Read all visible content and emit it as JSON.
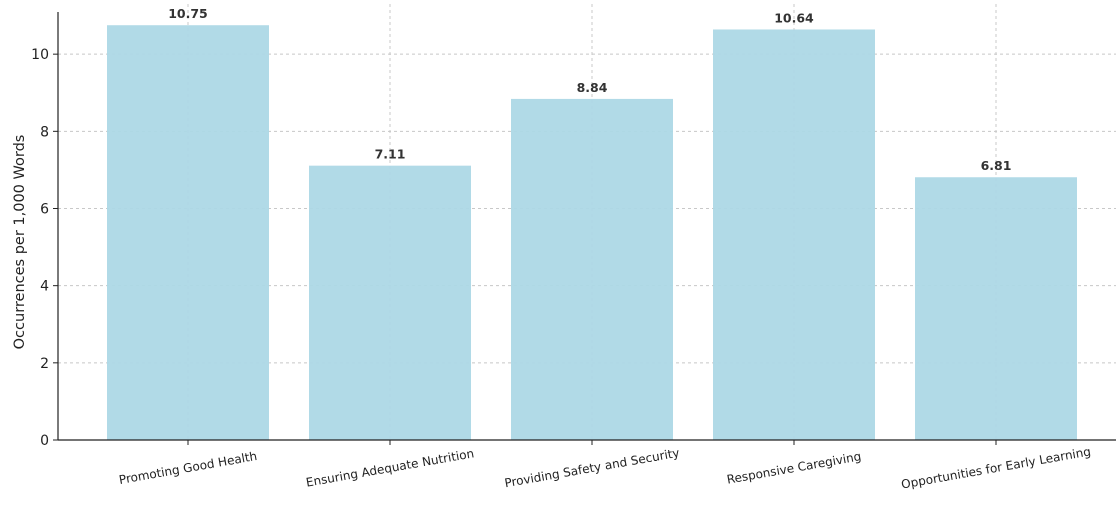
{
  "chart_data": {
    "type": "bar",
    "categories": [
      "Promoting Good Health",
      "Ensuring Adequate Nutrition",
      "Providing Safety and Security",
      "Responsive Caregiving",
      "Opportunities for Early Learning"
    ],
    "values": [
      10.75,
      7.11,
      8.84,
      10.64,
      6.81
    ],
    "value_labels": [
      "10.75",
      "7.11",
      "8.84",
      "10.64",
      "6.81"
    ],
    "xlabel": "",
    "ylabel": "Occurrences per 1,000 Words",
    "ylim": [
      0,
      11.3
    ],
    "yticks": [
      0,
      2,
      4,
      6,
      8,
      10
    ],
    "grid": true,
    "bar_color": "#add8e6"
  }
}
